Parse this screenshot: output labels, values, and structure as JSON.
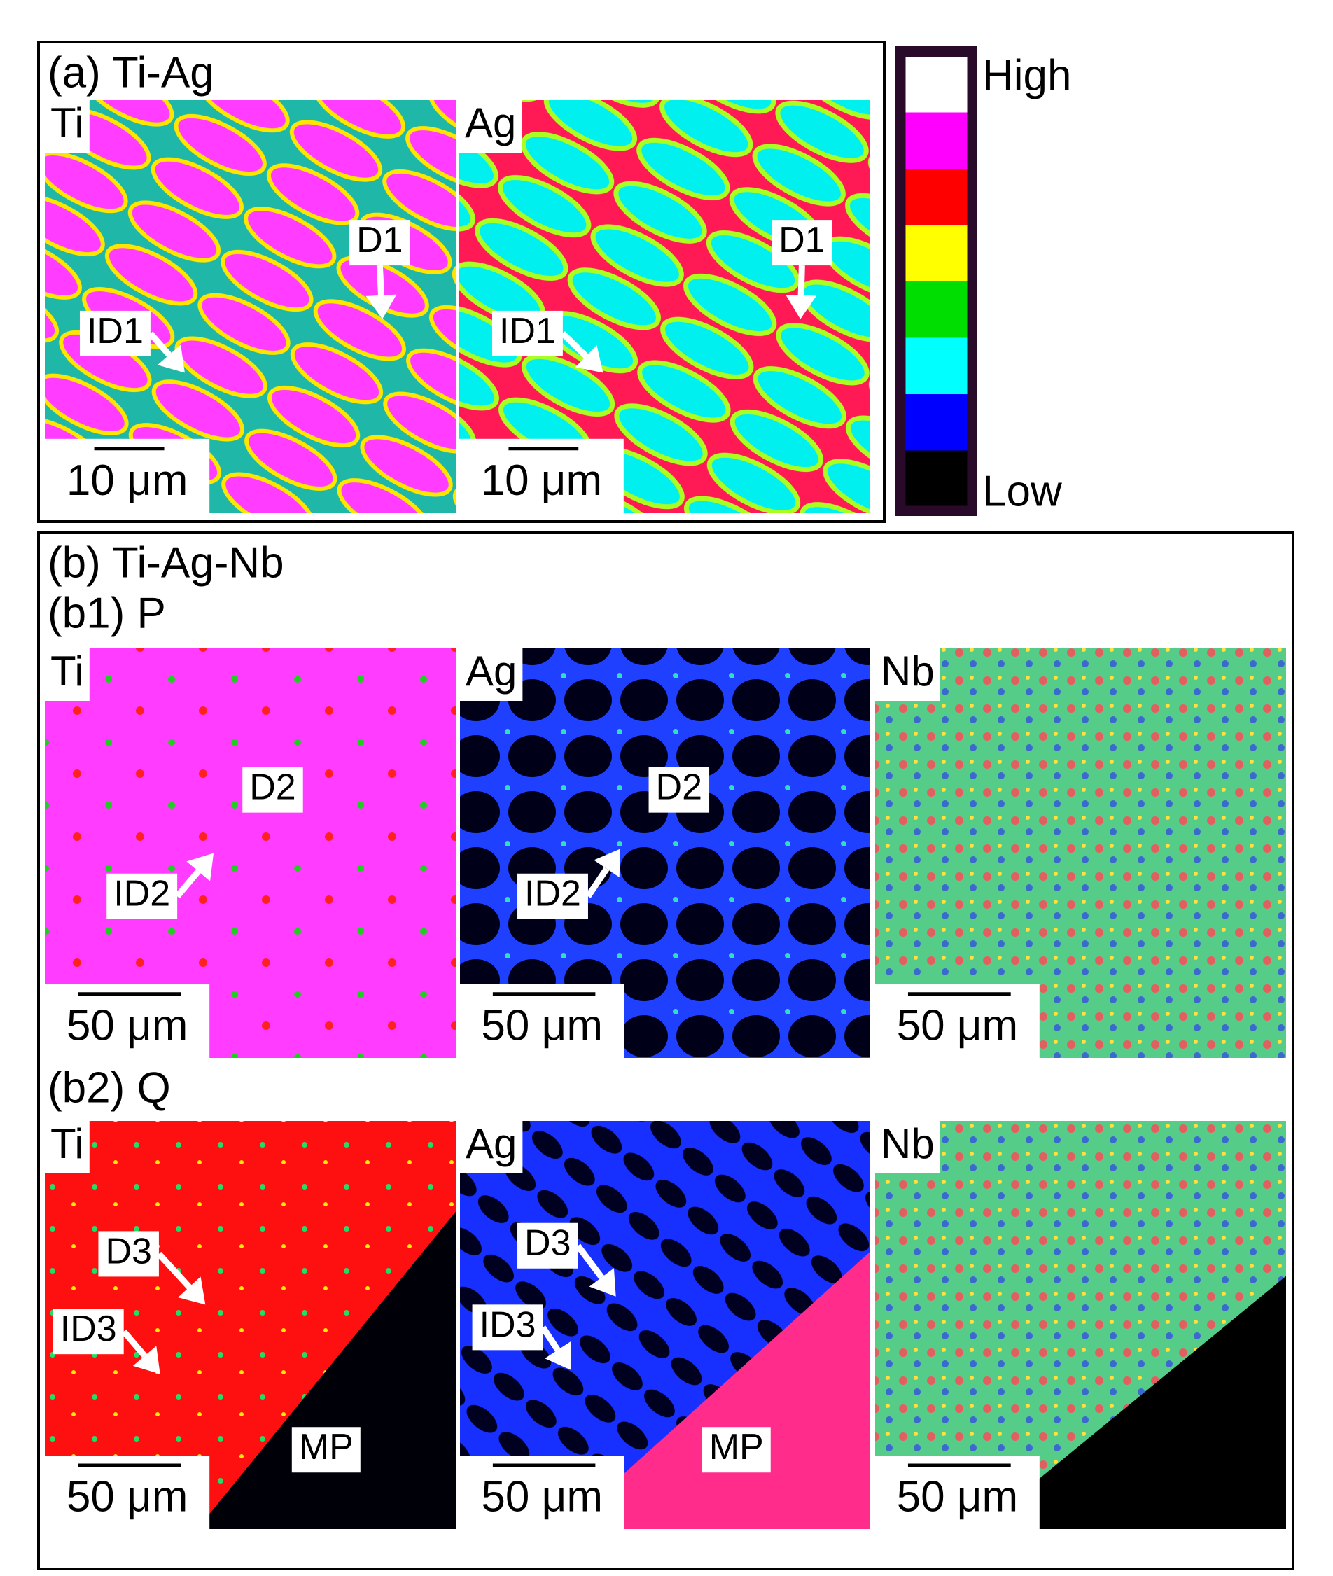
{
  "colorbar": {
    "high": "High",
    "low": "Low"
  },
  "panel_a": {
    "title": "(a) Ti-Ag",
    "maps": [
      {
        "element": "Ti",
        "scale_bar": "10 μm",
        "annotations": [
          "D1",
          "ID1"
        ]
      },
      {
        "element": "Ag",
        "scale_bar": "10 μm",
        "annotations": [
          "D1",
          "ID1"
        ]
      }
    ]
  },
  "panel_b": {
    "title": "(b) Ti-Ag-Nb",
    "sections": [
      {
        "title": "(b1) P",
        "maps": [
          {
            "element": "Ti",
            "scale_bar": "50 μm",
            "annotations": [
              "D2",
              "ID2"
            ]
          },
          {
            "element": "Ag",
            "scale_bar": "50 μm",
            "annotations": [
              "D2",
              "ID2"
            ]
          },
          {
            "element": "Nb",
            "scale_bar": "50 μm"
          }
        ]
      },
      {
        "title": "(b2) Q",
        "maps": [
          {
            "element": "Ti",
            "scale_bar": "50 μm",
            "annotations": [
              "D3",
              "ID3",
              "MP"
            ]
          },
          {
            "element": "Ag",
            "scale_bar": "50 μm",
            "annotations": [
              "D3",
              "ID3",
              "MP"
            ]
          },
          {
            "element": "Nb",
            "scale_bar": "50 μm"
          }
        ]
      }
    ]
  }
}
